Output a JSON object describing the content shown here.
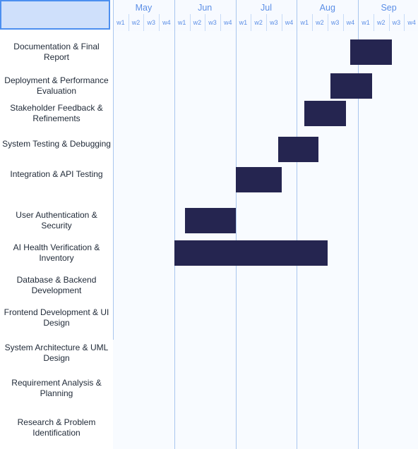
{
  "chart_data": {
    "type": "gantt",
    "months": [
      "May",
      "Jun",
      "Jul",
      "Aug",
      "Sep"
    ],
    "weeks": [
      "w1",
      "w2",
      "w3",
      "w4"
    ],
    "tasks": [
      {
        "name": "Documentation & Final Report",
        "start_week": 15.5,
        "end_week": 18.2
      },
      {
        "name": "Deployment & Performance Evaluation",
        "start_week": 14.2,
        "end_week": 16.9
      },
      {
        "name": "Stakeholder Feedback & Refinements",
        "start_week": 12.5,
        "end_week": 15.2
      },
      {
        "name": "System Testing & Debugging",
        "start_week": 10.8,
        "end_week": 13.4
      },
      {
        "name": "Integration & API Testing",
        "start_week": 8.0,
        "end_week": 11.0
      },
      {
        "name": "User Authentication & Security",
        "start_week": 4.7,
        "end_week": 8.0
      },
      {
        "name": "AI Health Verification & Inventory",
        "start_week": 4.0,
        "end_week": 14.0
      },
      {
        "name": "Database & Backend Development",
        "start_week": null,
        "end_week": null
      },
      {
        "name": "Frontend Development & UI Design",
        "start_week": null,
        "end_week": null
      },
      {
        "name": "System Architecture & UML Design",
        "start_week": null,
        "end_week": null
      },
      {
        "name": "Requirement Analysis & Planning",
        "start_week": null,
        "end_week": null
      },
      {
        "name": "Research & Problem Identification",
        "start_week": null,
        "end_week": null
      }
    ],
    "bar_color": "#252550",
    "grid": true
  }
}
